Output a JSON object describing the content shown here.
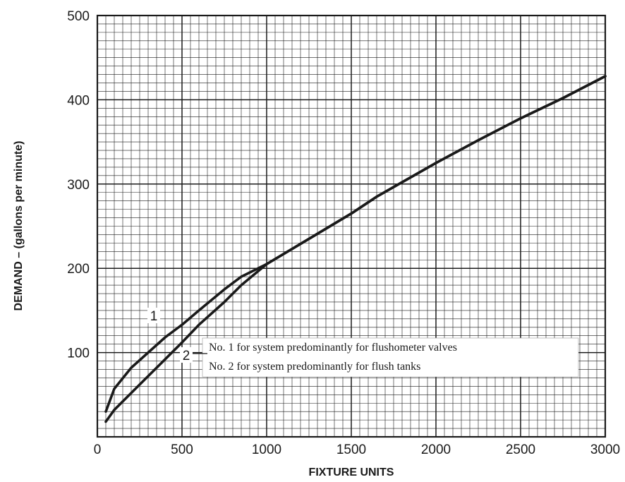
{
  "chart_data": {
    "type": "line",
    "title": "",
    "xlabel": "FIXTURE UNITS",
    "ylabel": "DEMAND – (gallons per minute)",
    "xlim": [
      0,
      3000
    ],
    "ylim": [
      0,
      500
    ],
    "x_ticks": [
      0,
      500,
      1000,
      1500,
      2000,
      2500,
      3000
    ],
    "y_ticks": [
      100,
      200,
      300,
      400,
      500
    ],
    "x_tick_labels": [
      "0",
      "500",
      "1000",
      "1500",
      "2000",
      "2500",
      "3000"
    ],
    "y_tick_labels": [
      "100",
      "200",
      "300",
      "400",
      "500"
    ],
    "grid": true,
    "minor_grid_step_x": 50,
    "minor_grid_step_y": 10,
    "major_grid_step_x": 500,
    "major_grid_step_y": 100,
    "series": [
      {
        "name": "1",
        "x": [
          50,
          100,
          200,
          300,
          400,
          500,
          600,
          750,
          850,
          1000,
          1250,
          1500,
          1650,
          2000,
          2250,
          2500,
          2750,
          3000
        ],
        "y": [
          30,
          57,
          82,
          100,
          118,
          133,
          150,
          175,
          190,
          205,
          235,
          265,
          285,
          325,
          352,
          378,
          402,
          428
        ],
        "color": "#1a1a1a"
      },
      {
        "name": "2",
        "x": [
          50,
          100,
          200,
          300,
          400,
          500,
          600,
          750,
          850,
          1000,
          1250,
          1500,
          1650,
          2000,
          2250,
          2500,
          2750,
          3000
        ],
        "y": [
          18,
          32,
          52,
          72,
          92,
          112,
          133,
          160,
          180,
          205,
          235,
          265,
          285,
          325,
          352,
          378,
          402,
          428
        ],
        "color": "#1a1a1a"
      }
    ],
    "curve_labels": [
      "1",
      "2"
    ],
    "legend": [
      "No. 1 for system predominantly for flushometer valves",
      "No. 2 for system predominantly for flush tanks"
    ]
  }
}
